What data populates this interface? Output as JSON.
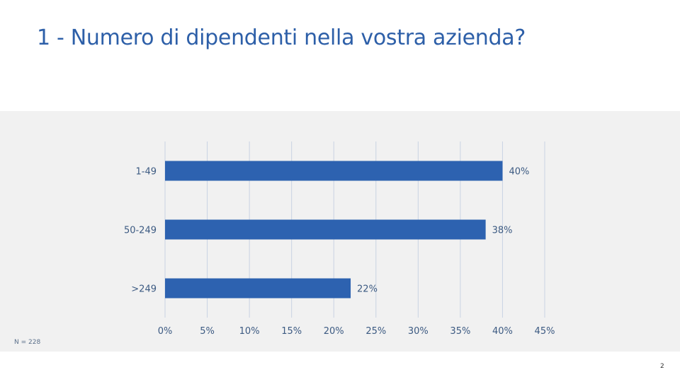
{
  "slide": {
    "title": "1 - Numero di dipendenti nella vostra azienda?",
    "sample_note": "N = 228",
    "page_number": "2"
  },
  "colors": {
    "title": "#2d5fa8",
    "bar": "#2d62b0",
    "grid": "#c9d3e3",
    "panel": "#f1f1f1",
    "text": "#3c5a82"
  },
  "chart_data": {
    "type": "bar",
    "orientation": "horizontal",
    "categories": [
      "1-49",
      "50-249",
      ">249"
    ],
    "values": [
      40,
      38,
      22
    ],
    "value_labels": [
      "40%",
      "38%",
      "22%"
    ],
    "xlim": [
      0,
      45
    ],
    "xticks": [
      0,
      5,
      10,
      15,
      20,
      25,
      30,
      35,
      40,
      45
    ],
    "xtick_labels": [
      "0%",
      "5%",
      "10%",
      "15%",
      "20%",
      "25%",
      "30%",
      "35%",
      "40%",
      "45%"
    ],
    "grid": true,
    "legend": "none"
  }
}
